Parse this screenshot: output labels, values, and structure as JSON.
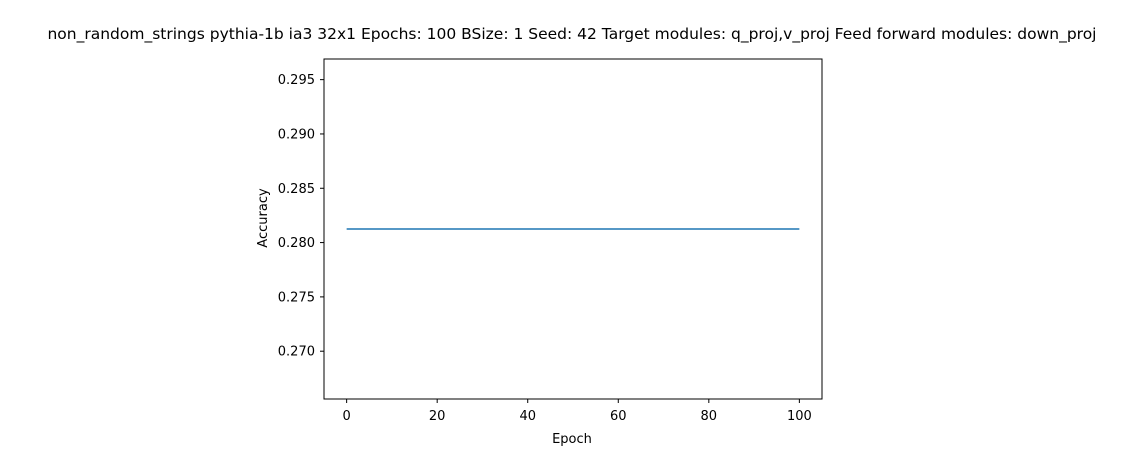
{
  "chart_data": {
    "type": "line",
    "title": "non_random_strings pythia-1b ia3 32x1 Epochs: 100 BSize: 1 Seed: 42 Target modules: q_proj,v_proj Feed forward modules: down_proj",
    "xlabel": "Epoch",
    "ylabel": "Accuracy",
    "xlim": [
      -5,
      105
    ],
    "ylim": [
      0.2656,
      0.2969
    ],
    "xticks": [
      0,
      20,
      40,
      60,
      80,
      100
    ],
    "xtick_labels": [
      "0",
      "20",
      "40",
      "60",
      "80",
      "100"
    ],
    "yticks": [
      0.27,
      0.275,
      0.28,
      0.285,
      0.29,
      0.295
    ],
    "ytick_labels": [
      "0.270",
      "0.275",
      "0.280",
      "0.285",
      "0.290",
      "0.295"
    ],
    "grid": false,
    "legend": "none",
    "series": [
      {
        "color": "#1f77b4",
        "x": [
          0,
          100
        ],
        "y": [
          0.28125,
          0.28125
        ]
      }
    ]
  }
}
